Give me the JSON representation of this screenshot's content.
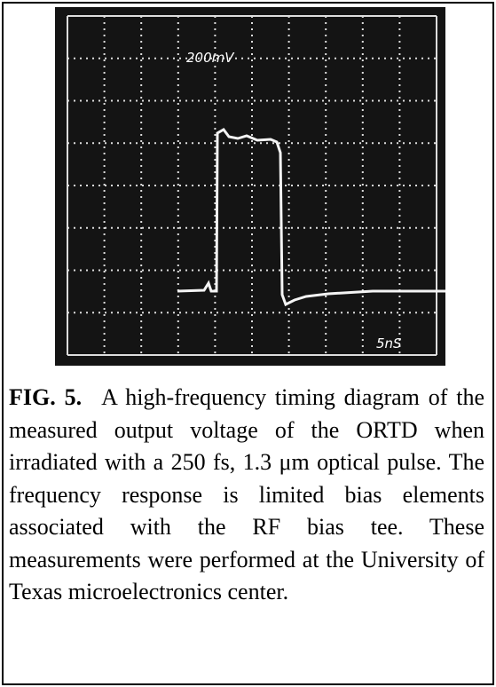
{
  "figure": {
    "scope_labels": {
      "volts_per_div": "200mV",
      "time_per_div": "5nS"
    },
    "caption": {
      "label": "FIG. 5.",
      "text": "A high-frequency timing diagram of the measured output voltage of the ORTD when irradiated with a 250 fs, 1.3 μm optical pulse. The frequency response is limited bias elements associated with the RF bias tee. These measurements were performed at the University of Texas microelectronics center."
    }
  }
}
